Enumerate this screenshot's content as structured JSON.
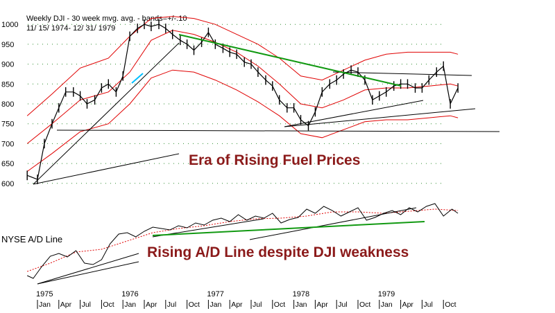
{
  "chart_data": {
    "type": "line",
    "title": "Weekly DJI - 30 week mvg. avg. - bands=+/-.10",
    "subtitle": "11/ 15/ 1974- 12/ 31/ 1979",
    "y_ticks": [
      1000,
      950,
      900,
      850,
      800,
      750,
      700,
      650,
      600
    ],
    "ylim": [
      570,
      1030
    ],
    "x_range": [
      1974.87,
      1980.0
    ],
    "year_labels": [
      {
        "label": "1975",
        "x": 1975.0
      },
      {
        "label": "1976",
        "x": 1976.0
      },
      {
        "label": "1977",
        "x": 1977.0
      },
      {
        "label": "1978",
        "x": 1978.0
      },
      {
        "label": "1979",
        "x": 1979.0
      }
    ],
    "month_labels": [
      {
        "label": "Jan",
        "x": 1975.0
      },
      {
        "label": "Apr",
        "x": 1975.25
      },
      {
        "label": "Jul",
        "x": 1975.5
      },
      {
        "label": "Oct",
        "x": 1975.75
      },
      {
        "label": "Jan",
        "x": 1976.0
      },
      {
        "label": "Apr",
        "x": 1976.25
      },
      {
        "label": "Jul",
        "x": 1976.5
      },
      {
        "label": "Oct",
        "x": 1976.75
      },
      {
        "label": "Jan",
        "x": 1977.0
      },
      {
        "label": "Apr",
        "x": 1977.25
      },
      {
        "label": "Jul",
        "x": 1977.5
      },
      {
        "label": "Oct",
        "x": 1977.75
      },
      {
        "label": "Jan",
        "x": 1978.0
      },
      {
        "label": "Apr",
        "x": 1978.25
      },
      {
        "label": "Jul",
        "x": 1978.5
      },
      {
        "label": "Oct",
        "x": 1978.75
      },
      {
        "label": "Jan",
        "x": 1979.0
      },
      {
        "label": "Apr",
        "x": 1979.25
      },
      {
        "label": "Jul",
        "x": 1979.5
      },
      {
        "label": "Oct",
        "x": 1979.75
      }
    ],
    "price_series": {
      "x": [
        1974.88,
        1975.0,
        1975.08,
        1975.17,
        1975.25,
        1975.33,
        1975.42,
        1975.5,
        1975.58,
        1975.67,
        1975.75,
        1975.83,
        1975.92,
        1976.0,
        1976.08,
        1976.17,
        1976.25,
        1976.33,
        1976.42,
        1976.5,
        1976.58,
        1976.67,
        1976.75,
        1976.83,
        1976.92,
        1977.0,
        1977.08,
        1977.17,
        1977.25,
        1977.33,
        1977.42,
        1977.5,
        1977.58,
        1977.67,
        1977.75,
        1977.83,
        1977.92,
        1978.0,
        1978.08,
        1978.17,
        1978.25,
        1978.33,
        1978.42,
        1978.5,
        1978.58,
        1978.67,
        1978.75,
        1978.83,
        1978.92,
        1979.0,
        1979.08,
        1979.17,
        1979.25,
        1979.33,
        1979.42,
        1979.5,
        1979.58,
        1979.67,
        1979.75,
        1979.83,
        1979.92
      ],
      "y": [
        620,
        610,
        700,
        750,
        790,
        830,
        830,
        820,
        800,
        810,
        840,
        850,
        830,
        870,
        970,
        990,
        1000,
        995,
        1000,
        990,
        975,
        960,
        950,
        935,
        955,
        980,
        950,
        940,
        930,
        925,
        905,
        900,
        880,
        860,
        845,
        810,
        790,
        790,
        760,
        745,
        780,
        830,
        850,
        860,
        875,
        885,
        880,
        860,
        810,
        820,
        830,
        845,
        850,
        850,
        840,
        840,
        860,
        880,
        895,
        800,
        840
      ]
    },
    "mavg_series": {
      "x": [
        1974.88,
        1975.17,
        1975.5,
        1975.83,
        1976.08,
        1976.33,
        1976.58,
        1976.83,
        1977.08,
        1977.33,
        1977.58,
        1977.83,
        1978.08,
        1978.33,
        1978.58,
        1978.83,
        1979.08,
        1979.33,
        1979.58,
        1979.83,
        1979.92
      ],
      "y": [
        700,
        750,
        810,
        830,
        880,
        960,
        985,
        975,
        955,
        930,
        895,
        850,
        800,
        790,
        810,
        835,
        840,
        840,
        845,
        850,
        845
      ]
    },
    "upper_band": {
      "x": [
        1974.88,
        1975.17,
        1975.5,
        1975.83,
        1976.08,
        1976.33,
        1976.58,
        1976.83,
        1977.08,
        1977.33,
        1977.58,
        1977.83,
        1978.08,
        1978.33,
        1978.58,
        1978.83,
        1979.08,
        1979.33,
        1979.58,
        1979.83,
        1979.92
      ],
      "y": [
        770,
        825,
        890,
        915,
        970,
        1015,
        1020,
        1015,
        1000,
        975,
        950,
        915,
        870,
        860,
        885,
        910,
        925,
        930,
        930,
        930,
        925
      ]
    },
    "lower_band": {
      "x": [
        1974.88,
        1975.17,
        1975.5,
        1975.83,
        1976.08,
        1976.33,
        1976.58,
        1976.83,
        1977.08,
        1977.33,
        1977.58,
        1977.83,
        1978.08,
        1978.33,
        1978.58,
        1978.83,
        1979.08,
        1979.33,
        1979.58,
        1979.83,
        1979.92
      ],
      "y": [
        630,
        675,
        730,
        750,
        800,
        865,
        885,
        880,
        860,
        835,
        805,
        770,
        725,
        715,
        735,
        755,
        760,
        760,
        765,
        770,
        765
      ]
    },
    "ad_series": {
      "x": [
        1974.88,
        1974.95,
        1975.05,
        1975.15,
        1975.25,
        1975.35,
        1975.45,
        1975.55,
        1975.65,
        1975.75,
        1975.85,
        1975.95,
        1976.05,
        1976.15,
        1976.25,
        1976.35,
        1976.45,
        1976.55,
        1976.65,
        1976.75,
        1976.85,
        1976.95,
        1977.05,
        1977.15,
        1977.25,
        1977.35,
        1977.45,
        1977.55,
        1977.65,
        1977.75,
        1977.85,
        1977.95,
        1978.05,
        1978.15,
        1978.25,
        1978.35,
        1978.45,
        1978.55,
        1978.65,
        1978.75,
        1978.85,
        1978.95,
        1979.05,
        1979.15,
        1979.25,
        1979.35,
        1979.45,
        1979.55,
        1979.65,
        1979.75,
        1979.85,
        1979.92
      ],
      "y": [
        12,
        8,
        25,
        40,
        44,
        39,
        48,
        30,
        28,
        35,
        58,
        72,
        74,
        68,
        76,
        82,
        80,
        78,
        84,
        81,
        88,
        85,
        92,
        95,
        90,
        100,
        92,
        98,
        95,
        102,
        88,
        93,
        96,
        108,
        102,
        112,
        106,
        98,
        104,
        110,
        92,
        96,
        102,
        106,
        100,
        110,
        104,
        112,
        116,
        98,
        108,
        102
      ]
    },
    "ad_mavg_series": {
      "x": [
        1974.88,
        1975.15,
        1975.45,
        1975.75,
        1976.05,
        1976.35,
        1976.65,
        1976.95,
        1977.25,
        1977.55,
        1977.85,
        1978.15,
        1978.45,
        1978.75,
        1979.05,
        1979.35,
        1979.65,
        1979.92
      ],
      "y": [
        18,
        30,
        46,
        50,
        62,
        74,
        80,
        84,
        90,
        94,
        95,
        98,
        104,
        104,
        102,
        105,
        108,
        106
      ]
    },
    "ad_label": "NYSE A/D Line",
    "annotations": [
      {
        "text": "Era of Rising Fuel Prices"
      },
      {
        "text": "Rising A/D Line despite DJI weakness"
      }
    ]
  },
  "colors": {
    "price": "#000000",
    "mavg": "#e00000",
    "bands": "#e00000",
    "green_trend": "#119911",
    "black_trend": "#000000",
    "annotation": "#8b1a1a",
    "grid_dots": "#2d8c2d",
    "wedge_accent": "#00bfff"
  }
}
